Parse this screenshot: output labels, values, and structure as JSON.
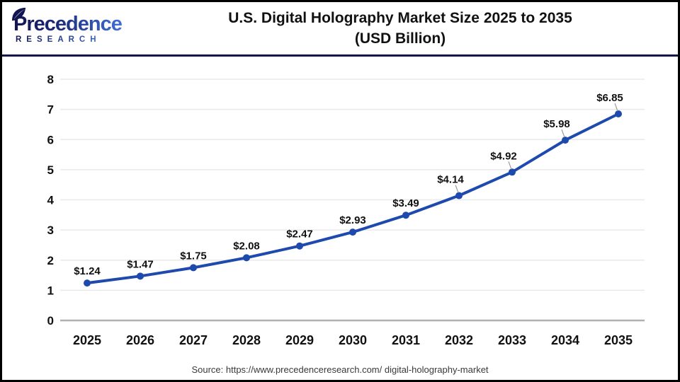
{
  "header": {
    "logo": {
      "brand": "Precedence",
      "subtitle": "RESEARCH"
    },
    "title_line1": "U.S. Digital Holography Market Size 2025 to 2035",
    "title_line2": "(USD Billion)"
  },
  "chart_data": {
    "type": "line",
    "title": "U.S. Digital Holography Market Size 2025 to 2035 (USD Billion)",
    "categories": [
      "2025",
      "2026",
      "2027",
      "2028",
      "2029",
      "2030",
      "2031",
      "2032",
      "2033",
      "2034",
      "2035"
    ],
    "values": [
      1.24,
      1.47,
      1.75,
      2.08,
      2.47,
      2.93,
      3.49,
      4.14,
      4.92,
      5.98,
      6.85
    ],
    "point_labels": [
      "$1.24",
      "$1.47",
      "$1.75",
      "$2.08",
      "$2.47",
      "$2.93",
      "$3.49",
      "$4.14",
      "$4.92",
      "$5.98",
      "$6.85"
    ],
    "xlabel": "",
    "ylabel": "",
    "ylim": [
      0,
      8
    ],
    "yticks": [
      0,
      1,
      2,
      3,
      4,
      5,
      6,
      7,
      8
    ],
    "grid": true,
    "legend": "none",
    "line_color": "#1e4aad",
    "marker_color": "#1e4aad",
    "data_label_color": "#111111",
    "axis_tick_color": "#111111",
    "grid_color": "#e9e9e9",
    "baseline_color": "#b0b0b0",
    "leader_line_color": "#9a9a9a",
    "leader_from_index": 7
  },
  "footer": {
    "source": "Source: https://www.precedenceresearch.com/ digital-holography-market"
  },
  "colors": {
    "page_border": "#000000",
    "header_divider": "#15154a",
    "brand_dark": "#141452",
    "brand_light": "#3f6fd8"
  }
}
